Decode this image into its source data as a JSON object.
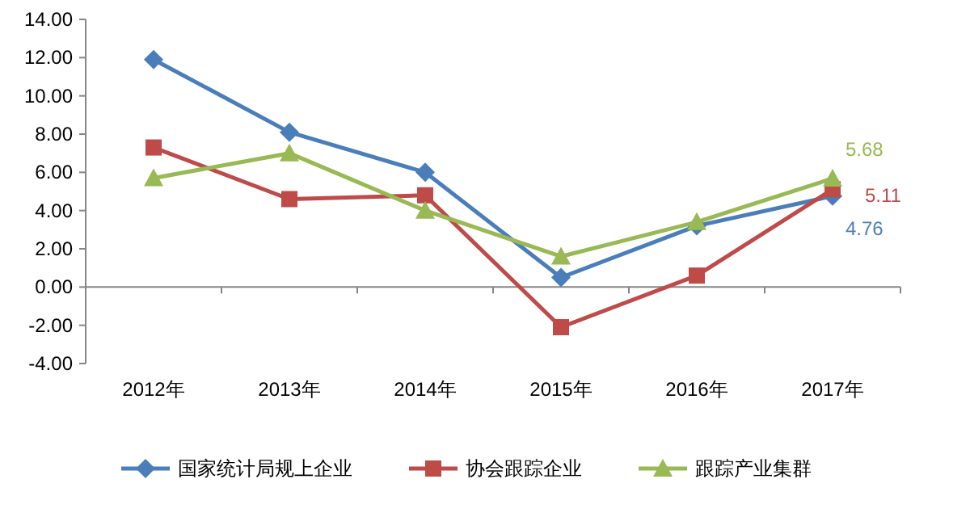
{
  "chart_data": {
    "type": "line",
    "categories": [
      "2012年",
      "2013年",
      "2014年",
      "2015年",
      "2016年",
      "2017年"
    ],
    "series": [
      {
        "name": "国家统计局规上企业",
        "color": "#4a7ebb",
        "marker": "diamond",
        "values": [
          11.9,
          8.1,
          6.0,
          0.5,
          3.2,
          4.76
        ]
      },
      {
        "name": "协会跟踪企业",
        "color": "#be4b48",
        "marker": "square",
        "values": [
          7.3,
          4.6,
          4.8,
          -2.1,
          0.6,
          5.11
        ]
      },
      {
        "name": "跟踪产业集群",
        "color": "#98b954",
        "marker": "triangle",
        "values": [
          5.7,
          7.0,
          4.0,
          1.6,
          3.4,
          5.68
        ]
      }
    ],
    "ylim": [
      -4,
      14
    ],
    "yticks": [
      {
        "value": -4,
        "label": "-4.00"
      },
      {
        "value": -2,
        "label": "-2.00"
      },
      {
        "value": 0,
        "label": "0.00"
      },
      {
        "value": 2,
        "label": "2.00"
      },
      {
        "value": 4,
        "label": "4.00"
      },
      {
        "value": 6,
        "label": "6.00"
      },
      {
        "value": 8,
        "label": "8.00"
      },
      {
        "value": 10,
        "label": "10.00"
      },
      {
        "value": 12,
        "label": "12.00"
      },
      {
        "value": 14,
        "label": "14.00"
      }
    ],
    "annotations": [
      {
        "text": "5.68",
        "x": "2017年",
        "y": 5.68
      },
      {
        "text": "5.11",
        "x": "2017年",
        "y": 5.11
      },
      {
        "text": "4.76",
        "x": "2017年",
        "y": 4.76
      }
    ],
    "legend": "bottom",
    "line_style": "solid"
  }
}
